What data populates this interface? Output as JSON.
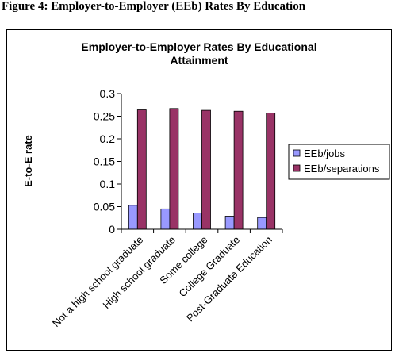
{
  "figure_caption": "Figure 4:  Employer-to-Employer (EEb) Rates By Education",
  "chart_data": {
    "type": "bar",
    "title": "Employer-to-Employer Rates By Educational Attainment",
    "title_lines": [
      "Employer-to-Employer Rates By Educational",
      "Attainment"
    ],
    "xlabel": "",
    "ylabel": "E-to-E rate",
    "categories": [
      "Not a high school graduate",
      "High school graduate",
      "Some college",
      "College Graduate",
      "Post-Graduate Education"
    ],
    "series": [
      {
        "name": "EEb/jobs",
        "color": "#9999ff",
        "values": [
          0.053,
          0.045,
          0.036,
          0.029,
          0.026
        ]
      },
      {
        "name": "EEb/separations",
        "color": "#993366",
        "values": [
          0.264,
          0.267,
          0.263,
          0.261,
          0.257
        ]
      }
    ],
    "ylim": [
      0,
      0.3
    ],
    "yticks": [
      0,
      0.05,
      0.1,
      0.15,
      0.2,
      0.25,
      0.3
    ],
    "ytick_labels": [
      "0",
      "0.05",
      "0.1",
      "0.15",
      "0.2",
      "0.25",
      "0.3"
    ],
    "grid": false,
    "legend_position": "right"
  }
}
